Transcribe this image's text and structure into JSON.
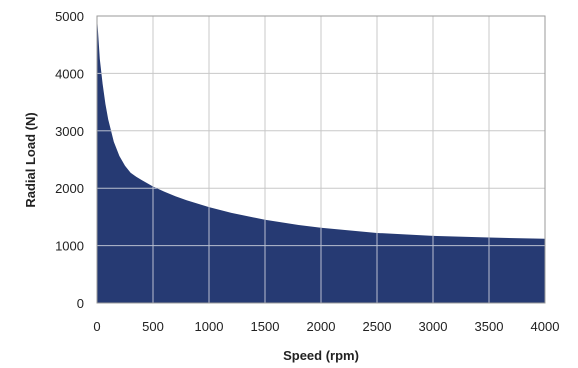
{
  "chart_data": {
    "type": "area",
    "title": "",
    "xlabel": "Speed (rpm)",
    "ylabel": "Radial Load (N)",
    "xlim": [
      0,
      4000
    ],
    "ylim": [
      0,
      5000
    ],
    "x_ticks": [
      "0",
      "500",
      "1000",
      "1500",
      "2000",
      "2500",
      "3000",
      "3500",
      "4000"
    ],
    "y_ticks": [
      "0",
      "1000",
      "2000",
      "3000",
      "4000",
      "5000"
    ],
    "grid": true,
    "legend": "none",
    "series": [
      {
        "fill_color": "#263a73",
        "x": [
          0,
          25,
          50,
          75,
          100,
          150,
          200,
          250,
          300,
          350,
          400,
          500,
          600,
          700,
          800,
          1000,
          1200,
          1500,
          1800,
          2000,
          2500,
          3000,
          3500,
          4000
        ],
        "y": [
          5000,
          4250,
          3820,
          3470,
          3200,
          2810,
          2560,
          2390,
          2270,
          2200,
          2140,
          2030,
          1940,
          1860,
          1790,
          1670,
          1570,
          1450,
          1360,
          1310,
          1220,
          1170,
          1140,
          1120
        ]
      }
    ]
  }
}
